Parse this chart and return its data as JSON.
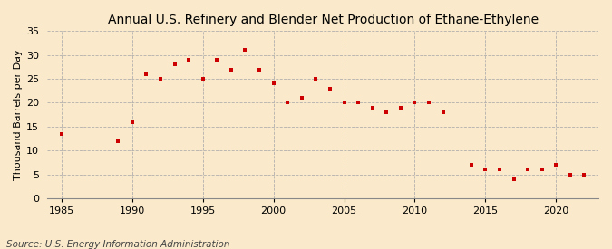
{
  "title": "Annual U.S. Refinery and Blender Net Production of Ethane-Ethylene",
  "ylabel": "Thousand Barrels per Day",
  "source": "Source: U.S. Energy Information Administration",
  "background_color": "#faeacb",
  "marker_color": "#cc0000",
  "years": [
    1985,
    1989,
    1990,
    1991,
    1992,
    1993,
    1994,
    1995,
    1996,
    1997,
    1998,
    1999,
    2000,
    2001,
    2002,
    2003,
    2004,
    2005,
    2006,
    2007,
    2008,
    2009,
    2010,
    2011,
    2012,
    2014,
    2015,
    2016,
    2017,
    2018,
    2019,
    2020,
    2021,
    2022
  ],
  "values": [
    13.5,
    12,
    16,
    26,
    25,
    28,
    29,
    25,
    29,
    27,
    31,
    27,
    24,
    20,
    21,
    25,
    23,
    20,
    20,
    19,
    18,
    19,
    20,
    20,
    18,
    7,
    6,
    6,
    4,
    6,
    6,
    7,
    5,
    5
  ],
  "xlim": [
    1984,
    2023
  ],
  "ylim": [
    0,
    35
  ],
  "yticks": [
    0,
    5,
    10,
    15,
    20,
    25,
    30,
    35
  ],
  "xticks": [
    1985,
    1990,
    1995,
    2000,
    2005,
    2010,
    2015,
    2020
  ],
  "grid_color": "#aaaaaa",
  "title_fontsize": 10,
  "tick_fontsize": 8,
  "ylabel_fontsize": 8,
  "source_fontsize": 7.5
}
